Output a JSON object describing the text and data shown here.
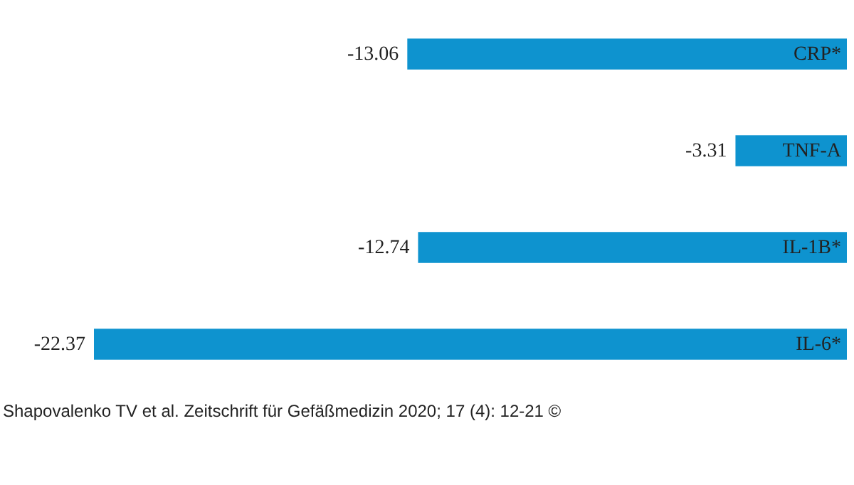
{
  "chart_data": {
    "type": "bar",
    "orientation": "horizontal",
    "categories": [
      "CRP*",
      "TNF-A",
      "IL-1B*",
      "IL-6*"
    ],
    "values": [
      -13.06,
      -3.31,
      -12.74,
      -22.37
    ],
    "color": "#0e93cf",
    "data_labels": true,
    "annotations": [
      "Shapovalenko TV et al. Zeitschrift für Gefäßmedizin 2020; 17 (4): 12-21 ©"
    ]
  }
}
